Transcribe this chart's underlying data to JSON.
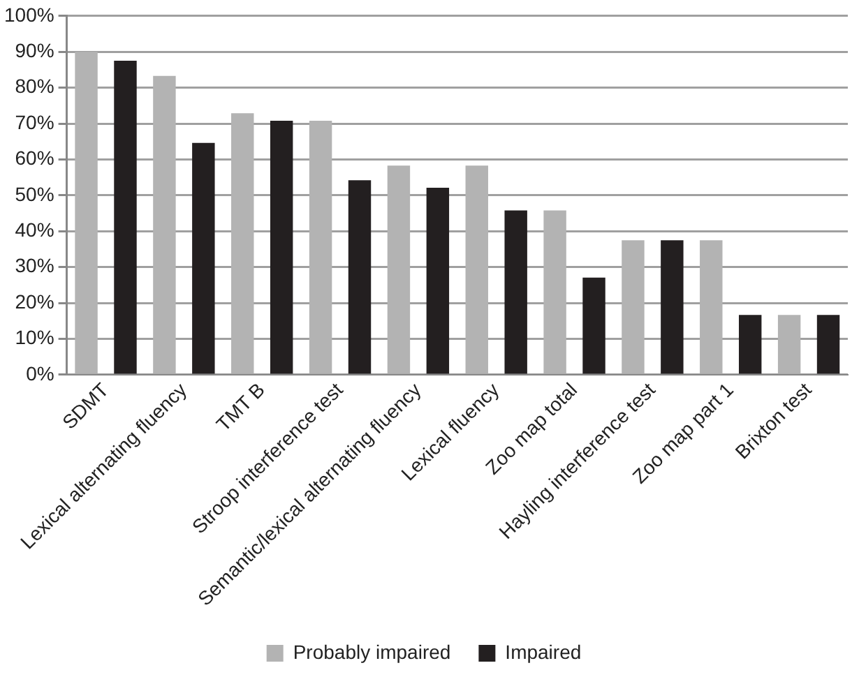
{
  "chart_data": {
    "type": "bar",
    "categories": [
      "SDMT",
      "Lexical alternating fluency",
      "TMT B",
      "Stroop interference test",
      "Semantic/lexical alternating fluency",
      "Lexical fluency",
      "Zoo map total",
      "Hayling interference test",
      "Zoo map part 1",
      "Brixton test"
    ],
    "series": [
      {
        "name": "Probably impaired",
        "color": "#b3b3b3",
        "values": [
          90,
          83.3,
          72.9,
          70.8,
          58.3,
          58.3,
          45.8,
          37.5,
          37.5,
          16.7
        ]
      },
      {
        "name": "Impaired",
        "color": "#231f20",
        "values": [
          87.5,
          64.6,
          70.8,
          54.2,
          52.1,
          45.8,
          27.1,
          37.5,
          16.7,
          16.7
        ]
      }
    ],
    "ylim": [
      0,
      100
    ],
    "yticks": [
      {
        "value": 0,
        "label": "0%"
      },
      {
        "value": 10,
        "label": "10%"
      },
      {
        "value": 20,
        "label": "20%"
      },
      {
        "value": 30,
        "label": "30%"
      },
      {
        "value": 40,
        "label": "40%"
      },
      {
        "value": 50,
        "label": "50%"
      },
      {
        "value": 60,
        "label": "60%"
      },
      {
        "value": 70,
        "label": "70%"
      },
      {
        "value": 80,
        "label": "80%"
      },
      {
        "value": 90,
        "label": "90%"
      },
      {
        "value": 100,
        "label": "100%"
      }
    ],
    "grid": "y",
    "legend": "bottom"
  }
}
